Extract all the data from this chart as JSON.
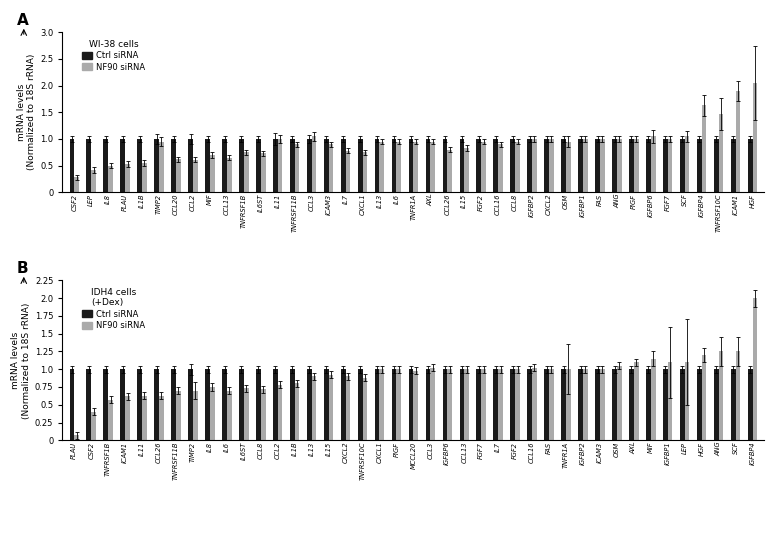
{
  "panel_A": {
    "title": "WI-38 cells",
    "categories": [
      "CSF2",
      "LEP",
      "IL8",
      "PLAU",
      "IL1B",
      "TIMP2",
      "CCL20",
      "CCL2",
      "MIF",
      "CCL13",
      "TNFRSF1B",
      "IL6ST",
      "IL11",
      "TNFRSF11B",
      "CCL3",
      "ICAM3",
      "IL7",
      "CXCL1",
      "IL13",
      "IL6",
      "TNFR1A",
      "AXL",
      "CCL26",
      "IL15",
      "FGF2",
      "CCL16",
      "CCL8",
      "IGFBP2",
      "CXCL2",
      "OSM",
      "IGFBP1",
      "FAS",
      "ANG",
      "PIGF",
      "IGFBP6",
      "FGF7",
      "SCF",
      "IGFBP4",
      "TNFRSF10C",
      "ICAM1",
      "HGF"
    ],
    "ctrl_vals": [
      1.0,
      1.0,
      1.0,
      1.0,
      1.0,
      1.0,
      1.0,
      1.0,
      1.0,
      1.0,
      1.0,
      1.0,
      1.0,
      1.0,
      1.0,
      1.0,
      1.0,
      1.0,
      1.0,
      1.0,
      1.0,
      1.0,
      1.0,
      1.0,
      1.0,
      1.0,
      1.0,
      1.0,
      1.0,
      1.0,
      1.0,
      1.0,
      1.0,
      1.0,
      1.0,
      1.0,
      1.0,
      1.0,
      1.0,
      1.0,
      1.0
    ],
    "nf90_vals": [
      0.28,
      0.42,
      0.5,
      0.53,
      0.55,
      0.95,
      0.62,
      0.61,
      0.7,
      0.65,
      0.75,
      0.73,
      1.0,
      0.9,
      1.05,
      0.9,
      0.78,
      0.75,
      0.95,
      0.95,
      0.95,
      0.95,
      0.8,
      0.83,
      0.95,
      0.9,
      0.95,
      1.0,
      1.0,
      0.95,
      1.0,
      1.0,
      1.0,
      1.0,
      1.05,
      1.0,
      1.05,
      1.63,
      1.47,
      1.9,
      2.05
    ],
    "ctrl_err": [
      0.05,
      0.05,
      0.05,
      0.05,
      0.05,
      0.1,
      0.05,
      0.1,
      0.05,
      0.05,
      0.05,
      0.05,
      0.12,
      0.05,
      0.08,
      0.05,
      0.05,
      0.05,
      0.05,
      0.05,
      0.05,
      0.05,
      0.05,
      0.05,
      0.05,
      0.05,
      0.05,
      0.05,
      0.05,
      0.05,
      0.05,
      0.05,
      0.05,
      0.05,
      0.05,
      0.05,
      0.05,
      0.05,
      0.05,
      0.05,
      0.05
    ],
    "nf90_err": [
      0.05,
      0.05,
      0.05,
      0.05,
      0.05,
      0.08,
      0.05,
      0.05,
      0.05,
      0.05,
      0.05,
      0.05,
      0.08,
      0.05,
      0.08,
      0.05,
      0.05,
      0.05,
      0.05,
      0.05,
      0.05,
      0.05,
      0.05,
      0.05,
      0.05,
      0.05,
      0.05,
      0.05,
      0.05,
      0.1,
      0.05,
      0.05,
      0.05,
      0.05,
      0.12,
      0.05,
      0.1,
      0.2,
      0.3,
      0.18,
      0.7
    ],
    "ylim": [
      0,
      3.0
    ],
    "yticks": [
      0.0,
      0.5,
      1.0,
      1.5,
      2.0,
      2.5,
      3.0
    ]
  },
  "panel_B": {
    "title": "IDH4 cells",
    "title2": "(+Dex)",
    "categories": [
      "PLAU",
      "CSF2",
      "TNFRSF1B",
      "ICAM1",
      "IL11",
      "CCL26",
      "TNFRSF11B",
      "TIMP2",
      "IL8",
      "IL6",
      "IL6ST",
      "CCL8",
      "CCL2",
      "IL1B",
      "IL13",
      "IL15",
      "CXCL2",
      "TNFRSF10C",
      "CXCL1",
      "PIGF",
      "MCCL20",
      "CCL3",
      "IGFBP6",
      "CCL13",
      "FGF7",
      "IL7",
      "FGF2",
      "CCL16",
      "FAS",
      "TNFR1A",
      "IGFBP2",
      "ICAM3",
      "OSM",
      "AXL",
      "MIF",
      "IGFBP1",
      "LEP",
      "HGF",
      "ANG",
      "SCF",
      "IGFBP4"
    ],
    "ctrl_vals": [
      1.0,
      1.0,
      1.0,
      1.0,
      1.0,
      1.0,
      1.0,
      1.0,
      1.0,
      1.0,
      1.0,
      1.0,
      1.0,
      1.0,
      1.0,
      1.0,
      1.0,
      1.0,
      1.0,
      1.0,
      1.0,
      1.0,
      1.0,
      1.0,
      1.0,
      1.0,
      1.0,
      1.0,
      1.0,
      1.0,
      1.0,
      1.0,
      1.0,
      1.0,
      1.0,
      1.0,
      1.0,
      1.0,
      1.0,
      1.0,
      1.0
    ],
    "nf90_vals": [
      0.07,
      0.4,
      0.57,
      0.62,
      0.63,
      0.63,
      0.7,
      0.7,
      0.75,
      0.7,
      0.73,
      0.72,
      0.78,
      0.8,
      0.9,
      0.92,
      0.9,
      0.88,
      1.0,
      1.0,
      0.98,
      1.02,
      1.0,
      1.0,
      1.0,
      1.0,
      1.0,
      1.02,
      1.0,
      1.0,
      1.0,
      1.0,
      1.05,
      1.1,
      1.15,
      1.1,
      1.1,
      1.2,
      1.25,
      1.25,
      2.0
    ],
    "ctrl_err": [
      0.05,
      0.05,
      0.05,
      0.05,
      0.05,
      0.05,
      0.05,
      0.08,
      0.05,
      0.05,
      0.05,
      0.05,
      0.05,
      0.05,
      0.05,
      0.05,
      0.05,
      0.05,
      0.05,
      0.05,
      0.05,
      0.05,
      0.05,
      0.05,
      0.05,
      0.05,
      0.05,
      0.05,
      0.05,
      0.05,
      0.05,
      0.05,
      0.05,
      0.05,
      0.05,
      0.05,
      0.05,
      0.05,
      0.05,
      0.05,
      0.05
    ],
    "nf90_err": [
      0.05,
      0.05,
      0.05,
      0.05,
      0.05,
      0.05,
      0.05,
      0.12,
      0.05,
      0.05,
      0.05,
      0.05,
      0.05,
      0.05,
      0.05,
      0.05,
      0.05,
      0.05,
      0.05,
      0.05,
      0.05,
      0.05,
      0.05,
      0.05,
      0.05,
      0.05,
      0.05,
      0.05,
      0.05,
      0.35,
      0.05,
      0.05,
      0.05,
      0.05,
      0.1,
      0.5,
      0.6,
      0.1,
      0.2,
      0.2,
      0.12
    ],
    "ylim": [
      0,
      2.25
    ],
    "yticks": [
      0.0,
      0.25,
      0.5,
      0.75,
      1.0,
      1.25,
      1.5,
      1.75,
      2.0,
      2.25
    ]
  },
  "ctrl_color": "#1a1a1a",
  "nf90_color": "#aaaaaa",
  "bar_width": 0.28,
  "ylabel": "mRNA levels\n(Normalized to 18S rRNA)",
  "label_fontsize": 4.8,
  "tick_fontsize": 6.0,
  "axis_label_fontsize": 6.5
}
